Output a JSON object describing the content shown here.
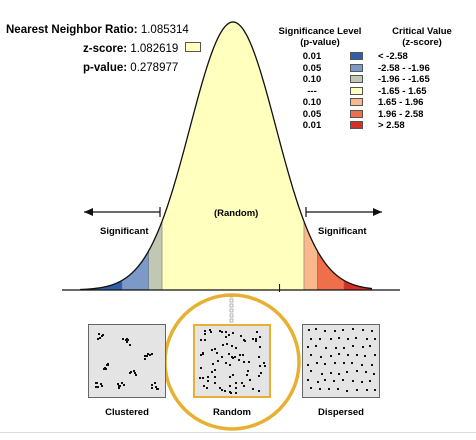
{
  "stats": {
    "nnr_label": "Nearest Neighbor Ratio:",
    "nnr_value": "1.085314",
    "z_label": "z-score:",
    "z_value": "1.082619",
    "p_label": "p-value:",
    "p_value": "0.278977"
  },
  "legend": {
    "level_title_1": "Significance Level",
    "level_title_2": "(p-value)",
    "critical_title_1": "Critical Value",
    "critical_title_2": "(z-score)",
    "rows": [
      {
        "level": "0.01",
        "critical": "< -2.58",
        "color": "#2f5fa7"
      },
      {
        "level": "0.05",
        "critical": "-2.58 - -1.96",
        "color": "#7b9ac7"
      },
      {
        "level": "0.10",
        "critical": "-1.96 - -1.65",
        "color": "#c0c8b4"
      },
      {
        "level": "---",
        "critical": "-1.65 - 1.65",
        "color": "#ffffbe"
      },
      {
        "level": "0.10",
        "critical": "1.65 - 1.96",
        "color": "#f9b98d"
      },
      {
        "level": "0.05",
        "critical": "1.96 - 2.58",
        "color": "#ef6f4a"
      },
      {
        "level": "0.01",
        "critical": "> 2.58",
        "color": "#d62f27"
      }
    ]
  },
  "curve_labels": {
    "center": "(Random)",
    "left": "Significant",
    "right": "Significant"
  },
  "patterns": {
    "clustered": "Clustered",
    "random": "Random",
    "dispersed": "Dispersed"
  },
  "marker": {
    "z_score": 1.082619,
    "highlight_color": "#e8b030"
  }
}
